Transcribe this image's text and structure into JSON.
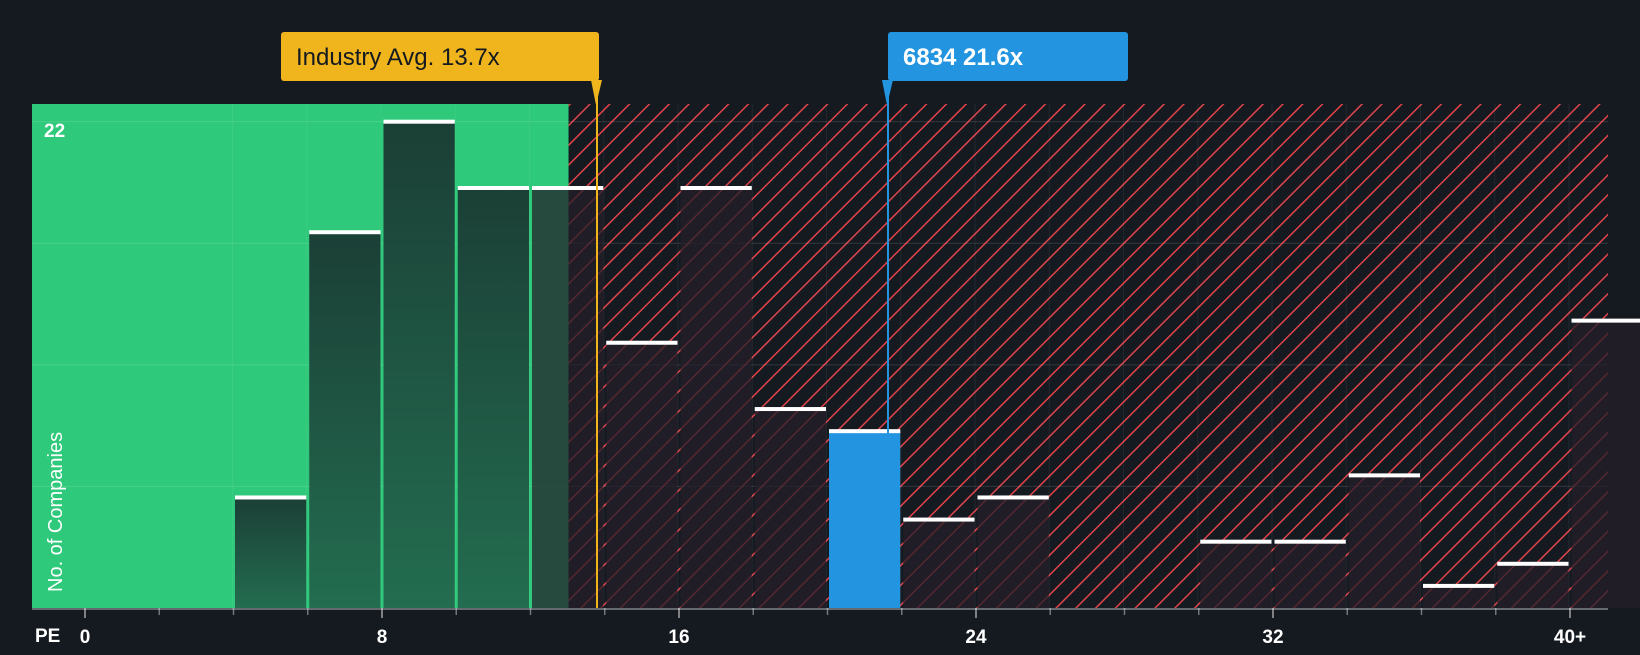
{
  "chart_data": {
    "type": "bar",
    "title": "",
    "xlabel": "PE",
    "ylabel": "No. of Companies",
    "xlim": [
      -0.5,
      41
    ],
    "ylim": [
      0,
      22.8
    ],
    "bin_width": 2,
    "x_ticks": [
      {
        "value": 0,
        "label": "0"
      },
      {
        "value": 8,
        "label": "8"
      },
      {
        "value": 16,
        "label": "16"
      },
      {
        "value": 24,
        "label": "24"
      },
      {
        "value": 32,
        "label": "32"
      },
      {
        "value": 40,
        "label": "40+"
      }
    ],
    "y_top_label": {
      "value": 22,
      "label": "22"
    },
    "bins": [
      {
        "start": 4,
        "value": 5
      },
      {
        "start": 6,
        "value": 17
      },
      {
        "start": 8,
        "value": 22
      },
      {
        "start": 10,
        "value": 19
      },
      {
        "start": 12,
        "value": 19
      },
      {
        "start": 14,
        "value": 12
      },
      {
        "start": 16,
        "value": 19
      },
      {
        "start": 18,
        "value": 9
      },
      {
        "start": 20,
        "value": 8,
        "highlight": true
      },
      {
        "start": 22,
        "value": 4
      },
      {
        "start": 24,
        "value": 5
      },
      {
        "start": 30,
        "value": 3
      },
      {
        "start": 32,
        "value": 3
      },
      {
        "start": 34,
        "value": 6
      },
      {
        "start": 36,
        "value": 1
      },
      {
        "start": 38,
        "value": 2
      },
      {
        "start": 40,
        "value": 13
      }
    ],
    "industry_avg": {
      "value": 13.7,
      "label": "Industry Avg. 13.7x",
      "color": "#f0b51d"
    },
    "company": {
      "value": 21.6,
      "label": "6834 21.6x",
      "color": "#2394e0"
    },
    "colors": {
      "background": "#151a21",
      "undervalued_zone": "#2ec97a",
      "overvalued_hatch": "#e0434a",
      "bar_in_green": "#1e4a3e",
      "bar_in_red": "#241f29",
      "highlight_bar": "#2394e0",
      "bar_cap": "#ffffff",
      "text": "#ffffff"
    }
  }
}
